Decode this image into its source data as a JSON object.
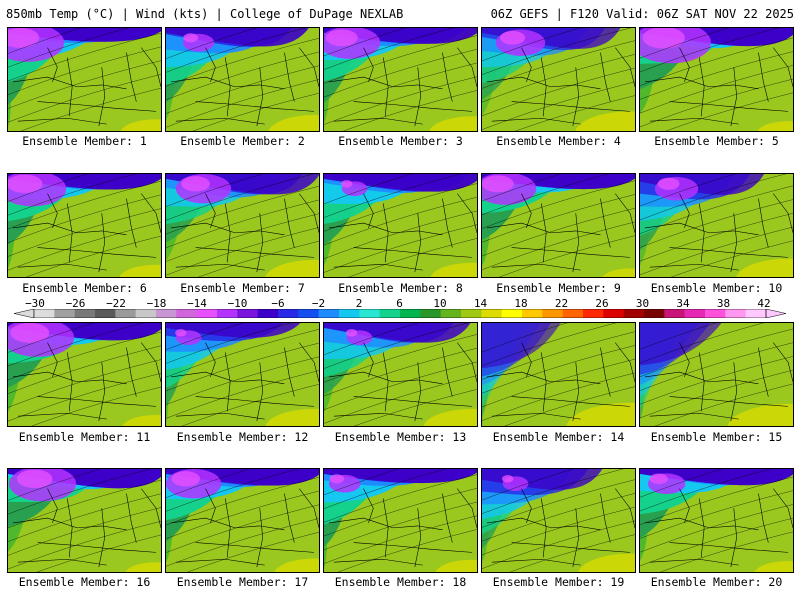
{
  "header": {
    "left": "850mb Temp (°C) | Wind (kts) | College of DuPage NEXLAB",
    "right": "06Z GEFS | F120 Valid: 06Z SAT NOV 22 2025"
  },
  "members": [
    {
      "label": "Ensemble Member: 1",
      "cold": 0.72,
      "warm_edge": 0.78,
      "pink": 0.45
    },
    {
      "label": "Ensemble Member: 2",
      "cold": 0.55,
      "warm_edge": 0.6,
      "pink": 0.1
    },
    {
      "label": "Ensemble Member: 3",
      "cold": 0.6,
      "warm_edge": 0.72,
      "pink": 0.35
    },
    {
      "label": "Ensemble Member: 4",
      "cold": 0.4,
      "warm_edge": 0.55,
      "pink": 0.25
    },
    {
      "label": "Ensemble Member: 5",
      "cold": 0.8,
      "warm_edge": 0.85,
      "pink": 0.5
    },
    {
      "label": "Ensemble Member: 6",
      "cold": 0.7,
      "warm_edge": 0.8,
      "pink": 0.4
    },
    {
      "label": "Ensemble Member: 7",
      "cold": 0.5,
      "warm_edge": 0.62,
      "pink": 0.3
    },
    {
      "label": "Ensemble Member: 8",
      "cold": 0.62,
      "warm_edge": 0.7,
      "pink": 0.05
    },
    {
      "label": "Ensemble Member: 9",
      "cold": 0.85,
      "warm_edge": 0.9,
      "pink": 0.35
    },
    {
      "label": "Ensemble Member: 10",
      "cold": 0.45,
      "warm_edge": 0.5,
      "pink": 0.2
    },
    {
      "label": "Ensemble Member: 11",
      "cold": 0.75,
      "warm_edge": 0.82,
      "pink": 0.45
    },
    {
      "label": "Ensemble Member: 12",
      "cold": 0.5,
      "warm_edge": 0.62,
      "pink": 0.05
    },
    {
      "label": "Ensemble Member: 13",
      "cold": 0.5,
      "warm_edge": 0.6,
      "pink": 0.05
    },
    {
      "label": "Ensemble Member: 14",
      "cold": 0.25,
      "warm_edge": 0.35,
      "pink": 0.0
    },
    {
      "label": "Ensemble Member: 15",
      "cold": 0.3,
      "warm_edge": 0.4,
      "pink": 0.0
    },
    {
      "label": "Ensemble Member: 16",
      "cold": 0.8,
      "warm_edge": 0.85,
      "pink": 0.4
    },
    {
      "label": "Ensemble Member: 17",
      "cold": 0.65,
      "warm_edge": 0.72,
      "pink": 0.3
    },
    {
      "label": "Ensemble Member: 18",
      "cold": 0.7,
      "warm_edge": 0.75,
      "pink": 0.1
    },
    {
      "label": "Ensemble Member: 19",
      "cold": 0.45,
      "warm_edge": 0.5,
      "pink": 0.05
    },
    {
      "label": "Ensemble Member: 20",
      "cold": 0.75,
      "warm_edge": 0.8,
      "pink": 0.15
    }
  ],
  "colorbar": {
    "ticks": [
      "-30",
      "-26",
      "-22",
      "-18",
      "-14",
      "-10",
      "-6",
      "-2",
      "2",
      "6",
      "10",
      "14",
      "18",
      "22",
      "26",
      "30",
      "34",
      "38",
      "42"
    ],
    "colors": [
      "#dcdcdc",
      "#a0a0a0",
      "#787878",
      "#5a5a5a",
      "#9a9a9a",
      "#c8c8c8",
      "#c896d2",
      "#d264dc",
      "#e650ff",
      "#b432ff",
      "#7814dc",
      "#3c00c8",
      "#2828e6",
      "#1450f0",
      "#1e8cff",
      "#14c8f0",
      "#28e6d2",
      "#14d28c",
      "#00b450",
      "#289628",
      "#64b41e",
      "#a0c814",
      "#dcdc00",
      "#ffff00",
      "#ffc800",
      "#ff9600",
      "#ff6400",
      "#ff2800",
      "#dc0000",
      "#a00000",
      "#780000",
      "#c81478",
      "#e628b4",
      "#ff50dc",
      "#ff96f0",
      "#ffc8ff"
    ]
  }
}
